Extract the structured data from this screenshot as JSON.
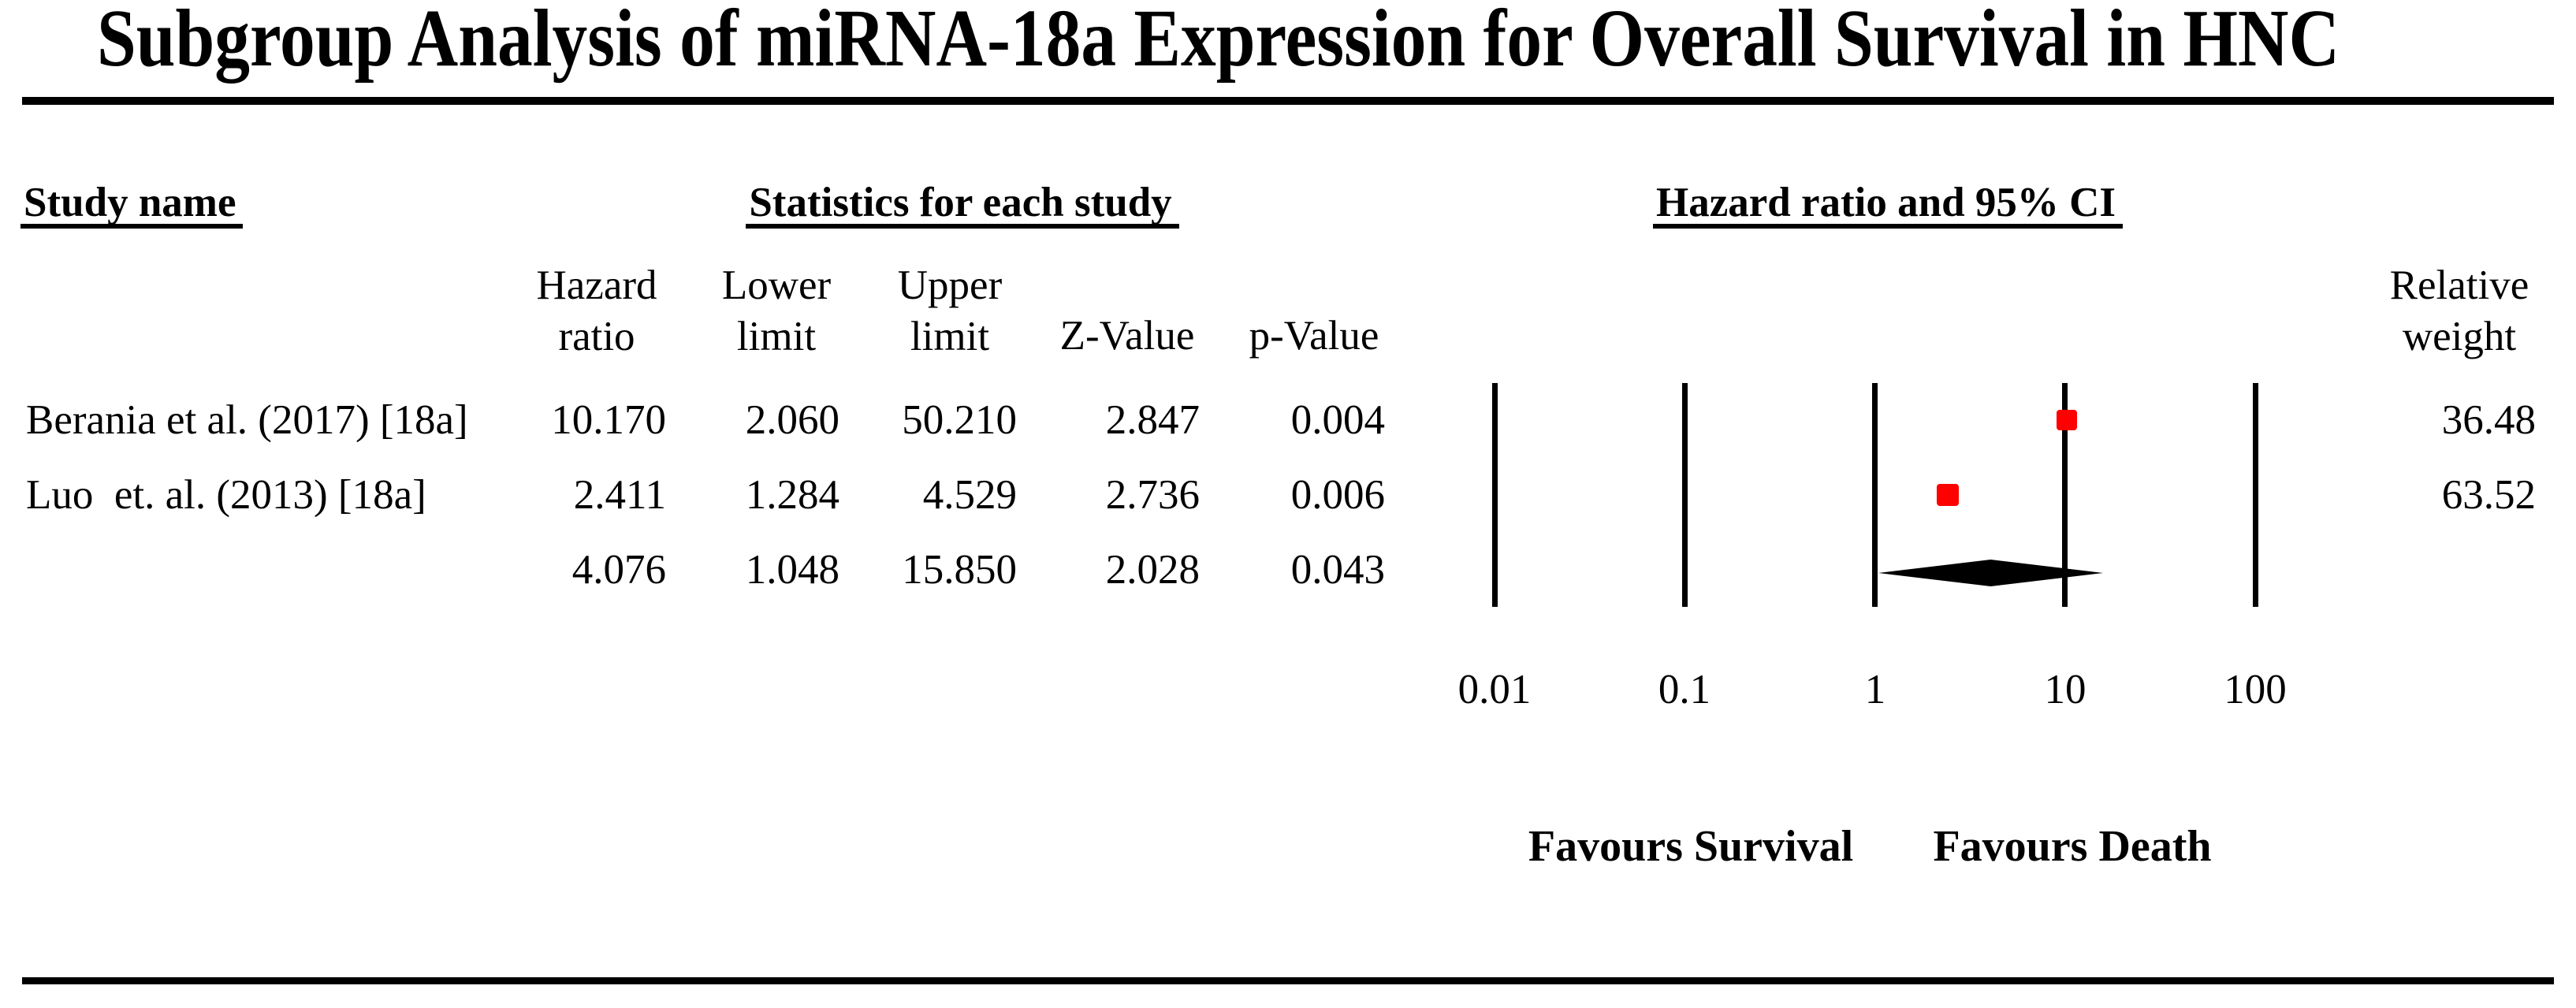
{
  "title": "Subgroup Analysis of miRNA-18a Expression for Overall Survival in HNC",
  "headers": {
    "study_name": "Study name",
    "statistics": "Statistics for each study",
    "hazard_ci": "Hazard ratio and 95% CI",
    "relative_weight": {
      "l1": "Relative",
      "l2": "weight"
    },
    "stat_columns": [
      {
        "l1": "Hazard",
        "l2": "ratio"
      },
      {
        "l1": "Lower",
        "l2": "limit"
      },
      {
        "l1": "Upper",
        "l2": "limit"
      },
      {
        "l1": "Z-Value"
      },
      {
        "l1": "p-Value"
      }
    ]
  },
  "chart_data": {
    "type": "forest",
    "x_scale": "log10",
    "x_range": [
      0.01,
      100
    ],
    "x_ticks": [
      "0.01",
      "0.1",
      "1",
      "10",
      "100"
    ],
    "grid": "vertical-decade-lines",
    "marker_color": "#ff0000",
    "summary_color": "#000000",
    "favours": {
      "left": "Favours Survival",
      "right": "Favours Death"
    },
    "studies": [
      {
        "name": "Berania et al. (2017) [18a]",
        "hazard_ratio": "10.170",
        "lower_limit": "2.060",
        "upper_limit": "50.210",
        "z_value": "2.847",
        "p_value": "0.004",
        "relative_weight": "36.48"
      },
      {
        "name": "Luo  et. al. (2013) [18a]",
        "hazard_ratio": "2.411",
        "lower_limit": "1.284",
        "upper_limit": "4.529",
        "z_value": "2.736",
        "p_value": "0.006",
        "relative_weight": "63.52"
      }
    ],
    "summary": {
      "hazard_ratio": "4.076",
      "lower_limit": "1.048",
      "upper_limit": "15.850",
      "z_value": "2.028",
      "p_value": "0.043"
    }
  }
}
